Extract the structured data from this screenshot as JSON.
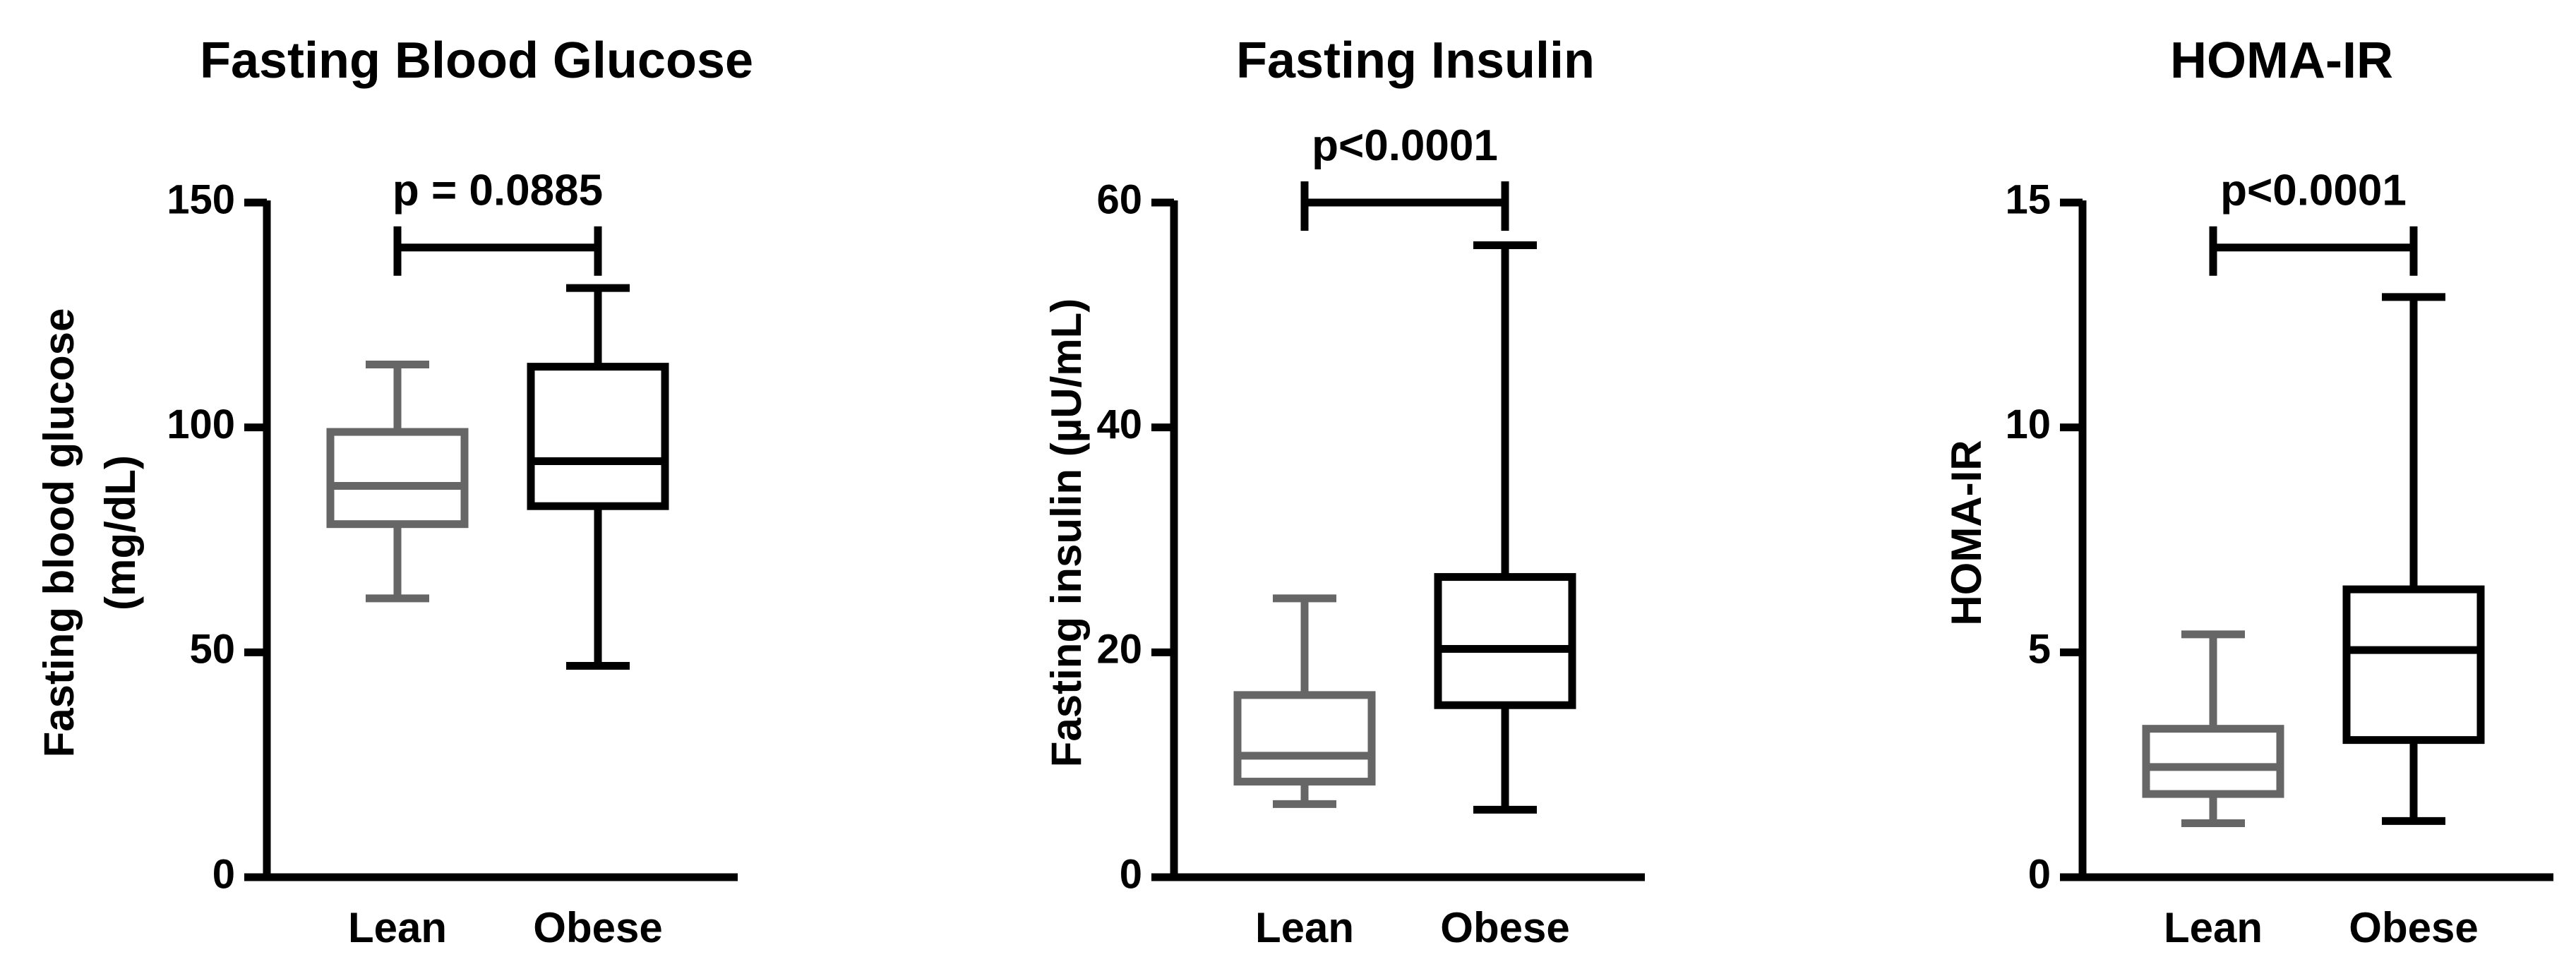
{
  "chart_data": [
    {
      "type": "box",
      "title": "Fasting Blood Glucose",
      "ylabel_lines": [
        "Fasting blood glucose",
        "(mg/dL)"
      ],
      "ylim": [
        0,
        150
      ],
      "yticks": [
        0,
        50,
        100,
        150
      ],
      "ytick_labels": [
        "0",
        "50",
        "100",
        "150"
      ],
      "categories": [
        "Lean",
        "Obese"
      ],
      "boxes": [
        {
          "category": "Lean",
          "min": 62,
          "q1": 78.5,
          "median": 87,
          "q3": 99,
          "max": 114,
          "color": "#666666"
        },
        {
          "category": "Obese",
          "min": 47,
          "q1": 82.5,
          "median": 92.5,
          "q3": 113.5,
          "max": 131,
          "color": "#000000"
        }
      ],
      "annotation": {
        "text": "p = 0.0885",
        "bracket_y": 140
      }
    },
    {
      "type": "box",
      "title": "Fasting Insulin",
      "ylabel_lines": [
        "Fasting insulin (µU/mL)"
      ],
      "ylim": [
        0,
        60
      ],
      "yticks": [
        0,
        20,
        40,
        60
      ],
      "ytick_labels": [
        "0",
        "20",
        "40",
        "60"
      ],
      "categories": [
        "Lean",
        "Obese"
      ],
      "boxes": [
        {
          "category": "Lean",
          "min": 6.5,
          "q1": 8.5,
          "median": 10.8,
          "q3": 16.2,
          "max": 24.8,
          "color": "#666666"
        },
        {
          "category": "Obese",
          "min": 6,
          "q1": 15.3,
          "median": 20.3,
          "q3": 26.7,
          "max": 56.2,
          "color": "#000000"
        }
      ],
      "annotation": {
        "text": "p<0.0001",
        "bracket_y": 60
      }
    },
    {
      "type": "box",
      "title": "HOMA-IR",
      "ylabel_lines": [
        "HOMA-IR"
      ],
      "ylim": [
        0,
        15
      ],
      "yticks": [
        0,
        5,
        10,
        15
      ],
      "ytick_labels": [
        "0",
        "5",
        "10",
        "15"
      ],
      "categories": [
        "Lean",
        "Obese"
      ],
      "boxes": [
        {
          "category": "Lean",
          "min": 1.2,
          "q1": 1.85,
          "median": 2.45,
          "q3": 3.3,
          "max": 5.4,
          "color": "#666666"
        },
        {
          "category": "Obese",
          "min": 1.25,
          "q1": 3.05,
          "median": 5.05,
          "q3": 6.4,
          "max": 12.9,
          "color": "#000000"
        }
      ],
      "annotation": {
        "text": "p<0.0001",
        "bracket_y": 14
      }
    }
  ]
}
